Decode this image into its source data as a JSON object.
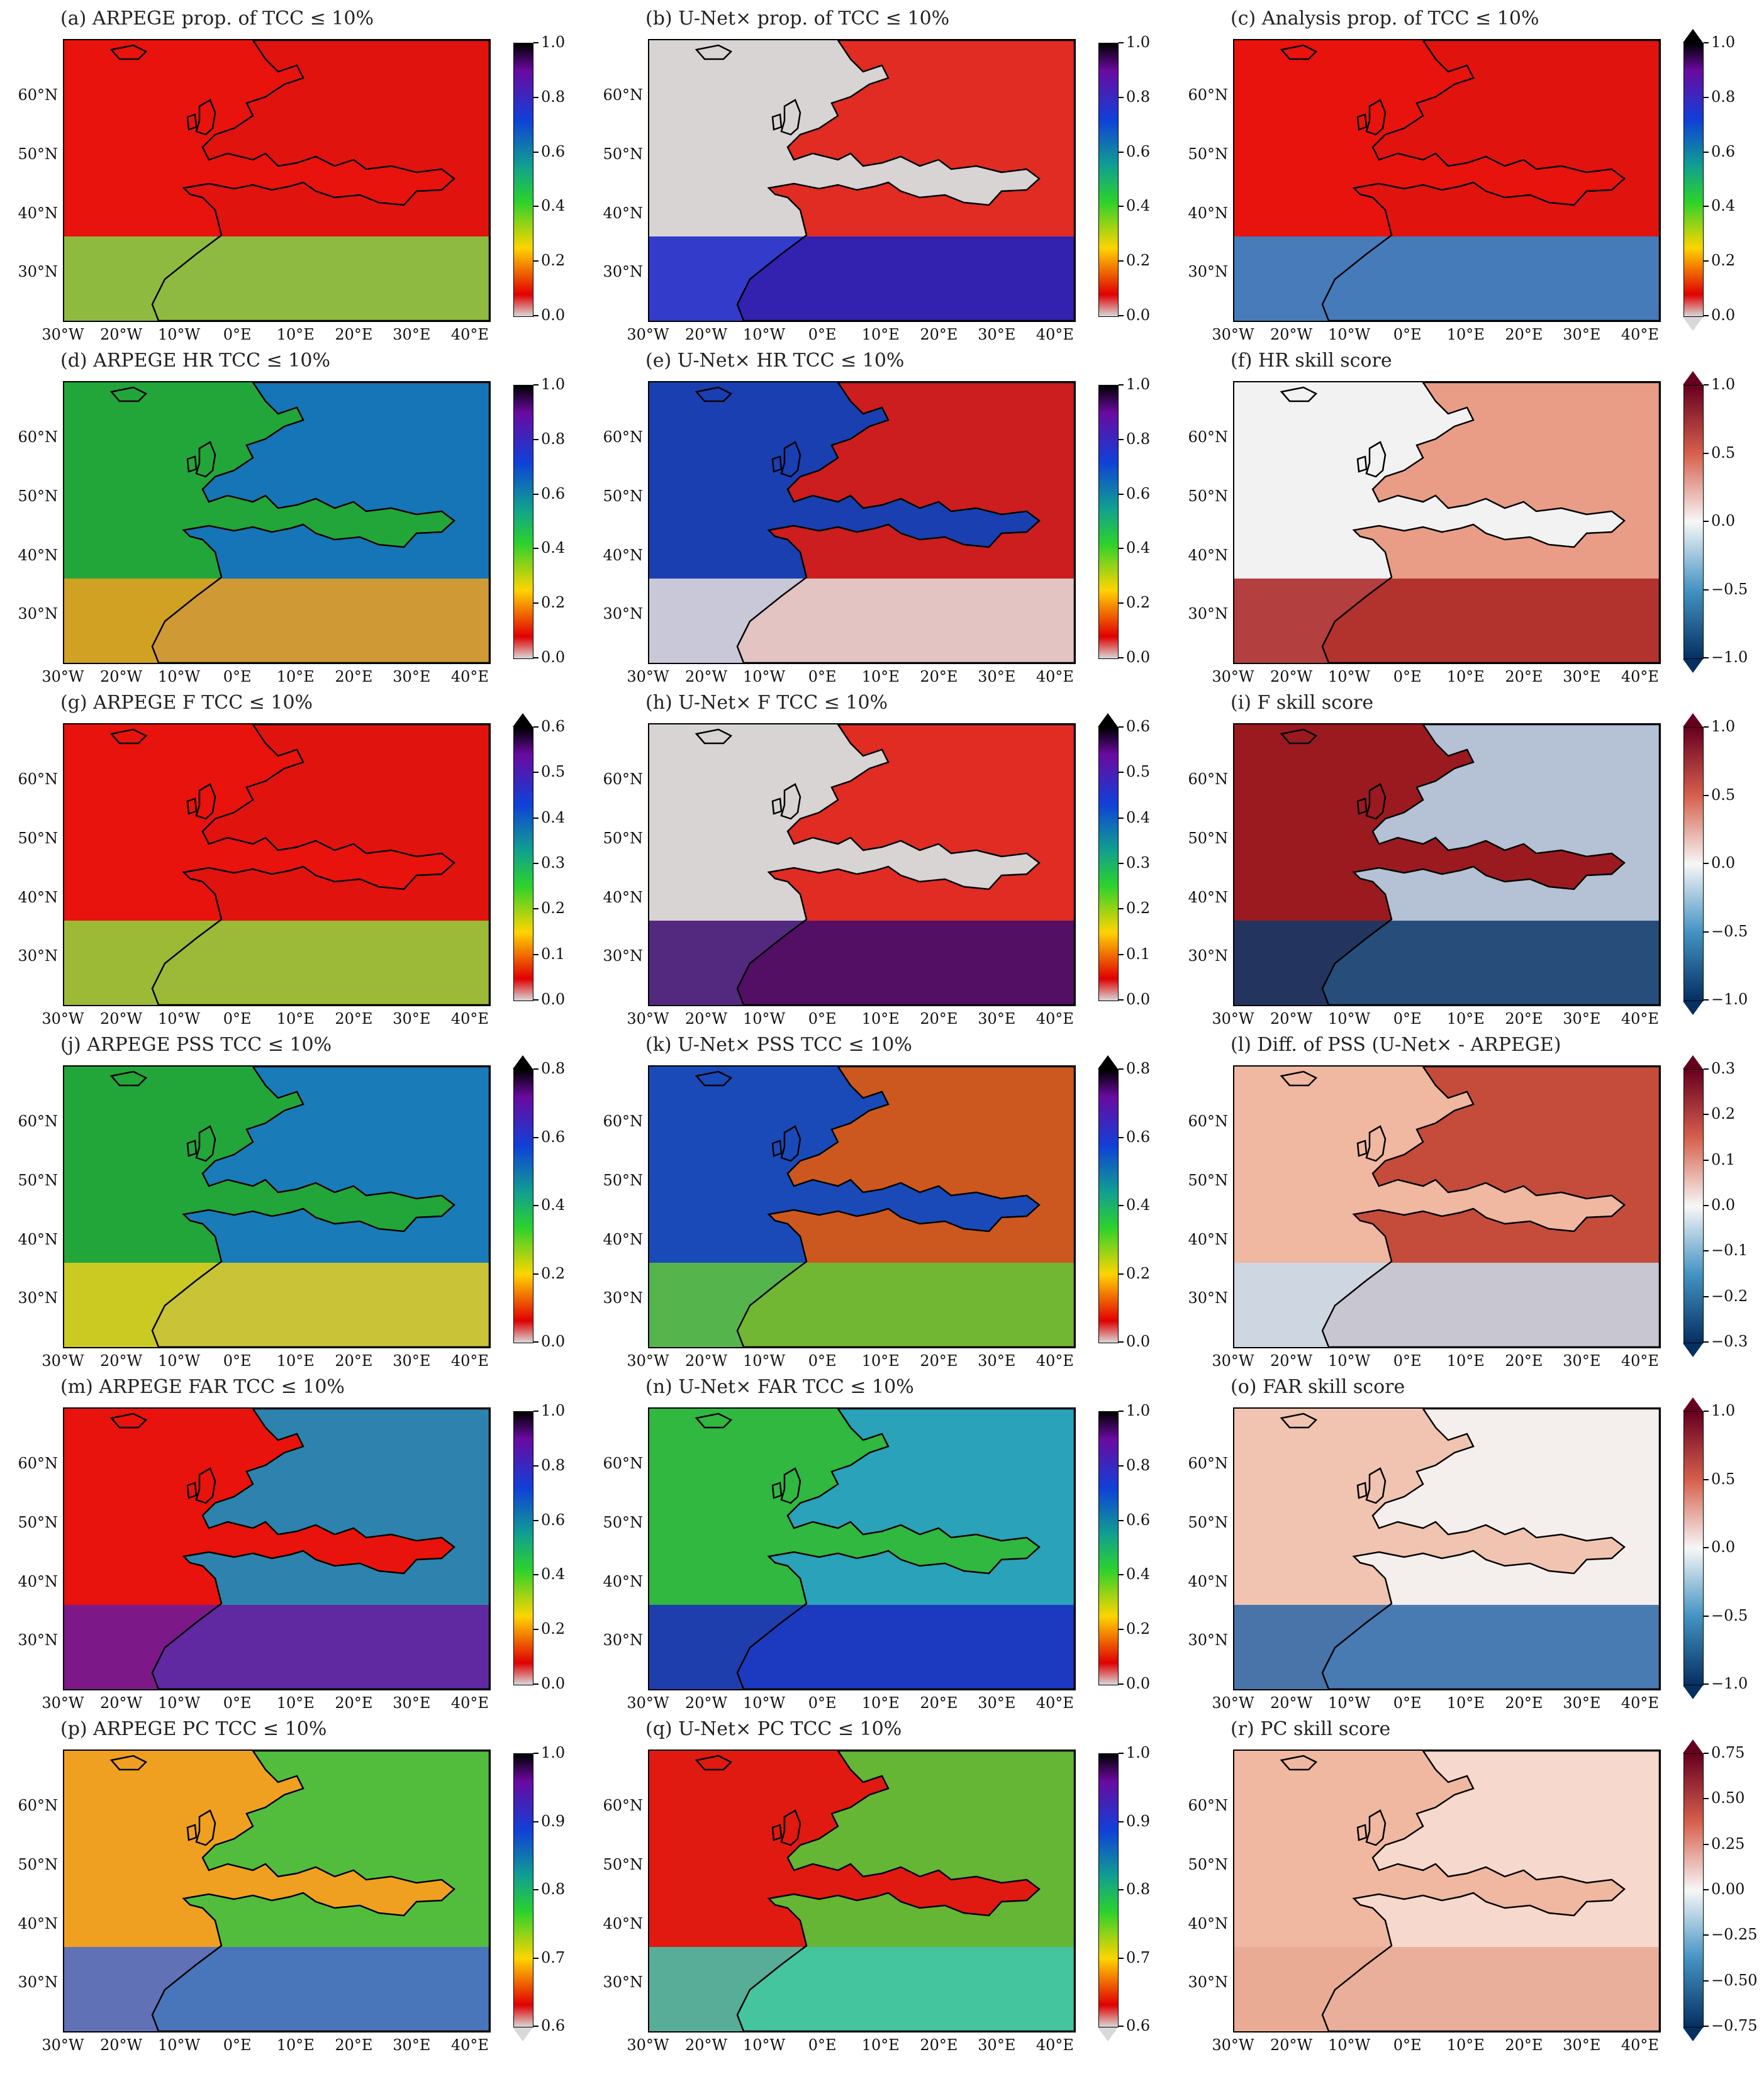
{
  "lat_labels": [
    "60°N",
    "50°N",
    "40°N",
    "30°N"
  ],
  "lon_labels": [
    "30°W",
    "20°W",
    "10°W",
    "0°E",
    "10°E",
    "20°E",
    "30°E",
    "40°E"
  ],
  "panels": [
    {
      "title": "(a) ARPEGE prop. of TCC ≤ 10%",
      "scheme": "spectral",
      "ticks": [
        "1.0",
        "0.8",
        "0.6",
        "0.4",
        "0.2",
        "0.0"
      ],
      "base": "#e8130c",
      "sea": "#e0140e",
      "south": "#7fd84a",
      "ext": "none"
    },
    {
      "title": "(b) U-Net× prop. of TCC ≤ 10%",
      "scheme": "spectral",
      "ticks": [
        "1.0",
        "0.8",
        "0.6",
        "0.4",
        "0.2",
        "0.0"
      ],
      "base": "#d9d4d4",
      "sea": "#e01a10",
      "south": "#1420c8",
      "ext": "none"
    },
    {
      "title": "(c) Analysis prop. of TCC ≤ 10%",
      "scheme": "spectral",
      "ticks": [
        "1.0",
        "0.8",
        "0.6",
        "0.4",
        "0.2",
        "0.0"
      ],
      "base": "#e8130c",
      "sea": "#e0140e",
      "south": "#2a8ed8",
      "ext": "both"
    },
    {
      "title": "(d) ARPEGE HR TCC ≤ 10%",
      "scheme": "spectral",
      "ticks": [
        "1.0",
        "0.8",
        "0.6",
        "0.4",
        "0.2",
        "0.0"
      ],
      "base": "#22a63a",
      "sea": "#1470c4",
      "south": "#f0a020",
      "ext": "none"
    },
    {
      "title": "(e) U-Net× HR TCC ≤ 10%",
      "scheme": "spectral",
      "ticks": [
        "1.0",
        "0.8",
        "0.6",
        "0.4",
        "0.2",
        "0.0"
      ],
      "base": "#1a3fb0",
      "sea": "#e01a10",
      "south": "#e8e0e0",
      "ext": "none"
    },
    {
      "title": "(f) HR skill score",
      "scheme": "diverging",
      "ticks": [
        "1.0",
        "0.5",
        "0.0",
        "−0.5",
        "−1.0"
      ],
      "base": "#f2f2f2",
      "sea": "#e8937a",
      "south": "#a8201e",
      "ext": "both"
    },
    {
      "title": "(g) ARPEGE F TCC ≤ 10%",
      "scheme": "spectral",
      "ticks": [
        "0.6",
        "0.5",
        "0.4",
        "0.3",
        "0.2",
        "0.1",
        "0.0"
      ],
      "base": "#e8130c",
      "sea": "#e0140e",
      "south": "#8fd840",
      "ext": "top"
    },
    {
      "title": "(h) U-Net× F TCC ≤ 10%",
      "scheme": "spectral",
      "ticks": [
        "0.6",
        "0.5",
        "0.4",
        "0.3",
        "0.2",
        "0.1",
        "0.0"
      ],
      "base": "#d9d4d4",
      "sea": "#e01a10",
      "south": "#3a0a70",
      "ext": "top"
    },
    {
      "title": "(i) F skill score",
      "scheme": "diverging",
      "ticks": [
        "1.0",
        "0.5",
        "0.0",
        "−0.5",
        "−1.0"
      ],
      "base": "#9a1a20",
      "sea": "#b8d4e8",
      "south": "#0e3a6a",
      "ext": "both"
    },
    {
      "title": "(j) ARPEGE PSS TCC ≤ 10%",
      "scheme": "spectral",
      "ticks": [
        "0.8",
        "0.6",
        "0.4",
        "0.2",
        "0.0"
      ],
      "base": "#22a63a",
      "sea": "#1878c8",
      "south": "#e8d020",
      "ext": "top"
    },
    {
      "title": "(k) U-Net× PSS TCC ≤ 10%",
      "scheme": "spectral",
      "ticks": [
        "0.8",
        "0.6",
        "0.4",
        "0.2",
        "0.0"
      ],
      "base": "#1a4ab8",
      "sea": "#e05a10",
      "south": "#60c838",
      "ext": "top"
    },
    {
      "title": "(l) Diff. of PSS (U-Net× - ARPEGE)",
      "scheme": "diverging",
      "ticks": [
        "0.3",
        "0.2",
        "0.1",
        "0.0",
        "−0.1",
        "−0.2",
        "−0.3"
      ],
      "base": "#f0b8a0",
      "sea": "#c04030",
      "south": "#c8dcec",
      "ext": "both"
    },
    {
      "title": "(m) ARPEGE FAR TCC ≤ 10%",
      "scheme": "spectral",
      "ticks": [
        "1.0",
        "0.8",
        "0.6",
        "0.4",
        "0.2",
        "0.0"
      ],
      "base": "#e8130c",
      "sea": "#1890c0",
      "south": "#6a1aa0",
      "ext": "none"
    },
    {
      "title": "(n) U-Net× FAR TCC ≤ 10%",
      "scheme": "spectral",
      "ticks": [
        "1.0",
        "0.8",
        "0.6",
        "0.4",
        "0.2",
        "0.0"
      ],
      "base": "#30b840",
      "sea": "#2aa0c8",
      "south": "#1a28c0",
      "ext": "none"
    },
    {
      "title": "(o) FAR skill score",
      "scheme": "diverging",
      "ticks": [
        "1.0",
        "0.5",
        "0.0",
        "−0.5",
        "−1.0"
      ],
      "base": "#f0c4b0",
      "sea": "#f4f4f4",
      "south": "#2a66a8",
      "ext": "both"
    },
    {
      "title": "(p) ARPEGE PC TCC ≤ 10%",
      "scheme": "spectral",
      "ticks": [
        "1.0",
        "0.9",
        "0.8",
        "0.7",
        "0.6"
      ],
      "base": "#f0a020",
      "sea": "#40c040",
      "south": "#4868d0",
      "ext": "bottom"
    },
    {
      "title": "(q) U-Net× PC TCC ≤ 10%",
      "scheme": "spectral",
      "ticks": [
        "1.0",
        "0.9",
        "0.8",
        "0.7",
        "0.6"
      ],
      "base": "#e01a10",
      "sea": "#58c838",
      "south": "#40c8b0",
      "ext": "bottom"
    },
    {
      "title": "(r) PC skill score",
      "scheme": "diverging",
      "ticks": [
        "0.75",
        "0.50",
        "0.25",
        "0.00",
        "−0.25",
        "−0.50",
        "−0.75"
      ],
      "base": "#f0b8a0",
      "sea": "#f6dcd0",
      "south": "#e8a890",
      "ext": "both"
    }
  ]
}
